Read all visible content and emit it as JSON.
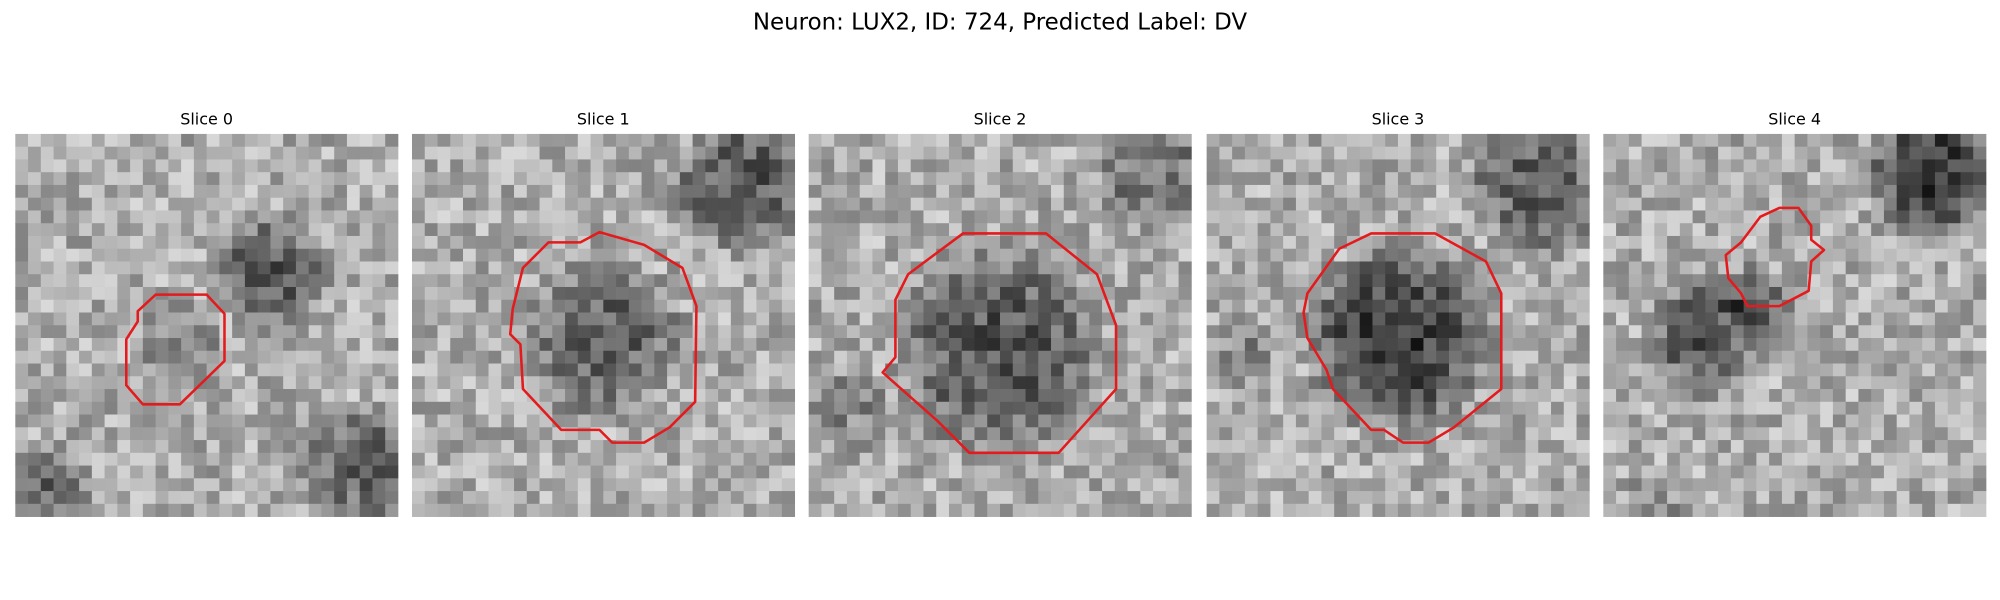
{
  "title": "Neuron: LUX2, ID: 724, Predicted Label: DV",
  "panels": [
    {
      "title": "Slice 0"
    },
    {
      "title": "Slice 1"
    },
    {
      "title": "Slice 2"
    },
    {
      "title": "Slice 3"
    },
    {
      "title": "Slice 4"
    }
  ]
}
